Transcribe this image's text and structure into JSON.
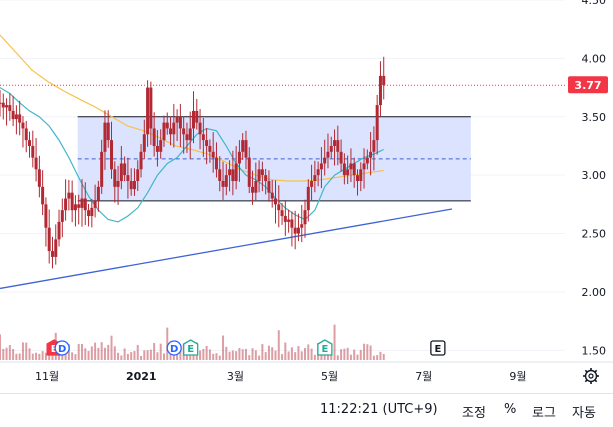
{
  "colors": {
    "candle": "#b22833",
    "zone_fill": "#dbe3ff",
    "zone_border": "#131722",
    "trendline": "#3d63d6",
    "ma_short": "#41b6c8",
    "ma_long": "#f5c24c",
    "price_label_bg": "#f23645",
    "axis_text": "#131722",
    "grid": "#f0f3fa"
  },
  "chart_data": {
    "type": "candlestick",
    "ylim": [
      1.4,
      4.5
    ],
    "y_ticks": [
      "4.50",
      "4.00",
      "3.50",
      "3.00",
      "2.50",
      "2.00",
      "1.50"
    ],
    "x_ticks": [
      {
        "label": "11월",
        "month": 1
      },
      {
        "label": "2021",
        "month": 3
      },
      {
        "label": "3월",
        "month": 5
      },
      {
        "label": "5월",
        "month": 7
      },
      {
        "label": "7월",
        "month": 9
      },
      {
        "label": "9월",
        "month": 11
      }
    ],
    "month_span": [
      0,
      12
    ],
    "last_price": "3.77",
    "last_price_value": 3.77,
    "zone": {
      "x_start": 1.65,
      "x_end": 10.0,
      "top": 3.5,
      "bottom": 2.78,
      "mid": 3.14
    },
    "trendline": {
      "x0": 0.0,
      "y0": 2.03,
      "x1": 9.6,
      "y1": 2.71
    },
    "events": [
      {
        "label": "E",
        "month": 1.15,
        "style": "earnings-red"
      },
      {
        "label": "D",
        "month": 1.32,
        "style": "dividend-blue"
      },
      {
        "label": "D",
        "month": 3.7,
        "style": "dividend-blue"
      },
      {
        "label": "E",
        "month": 4.05,
        "style": "earnings-teal"
      },
      {
        "label": "E",
        "month": 6.9,
        "style": "earnings-teal"
      },
      {
        "label": "E",
        "month": 9.3,
        "style": "earnings-gray"
      }
    ],
    "closes": [
      3.62,
      3.58,
      3.6,
      3.55,
      3.48,
      3.52,
      3.45,
      3.4,
      3.3,
      3.25,
      3.15,
      3.05,
      2.9,
      2.75,
      2.55,
      2.35,
      2.3,
      2.45,
      2.6,
      2.7,
      2.8,
      2.85,
      2.7,
      2.75,
      2.72,
      2.8,
      2.7,
      2.65,
      2.72,
      2.78,
      2.9,
      3.2,
      3.45,
      3.3,
      3.05,
      2.9,
      2.95,
      3.1,
      3.0,
      2.95,
      2.88,
      2.95,
      3.05,
      3.2,
      3.35,
      3.75,
      3.4,
      3.25,
      3.2,
      3.3,
      3.45,
      3.4,
      3.35,
      3.45,
      3.5,
      3.4,
      3.35,
      3.3,
      3.4,
      3.55,
      3.45,
      3.35,
      3.3,
      3.25,
      3.2,
      3.15,
      3.05,
      2.95,
      2.9,
      3.0,
      3.05,
      2.95,
      3.1,
      3.2,
      3.3,
      3.15,
      2.9,
      2.85,
      2.95,
      3.05,
      3.0,
      2.95,
      2.85,
      2.8,
      2.75,
      2.7,
      2.65,
      2.6,
      2.62,
      2.55,
      2.5,
      2.55,
      2.58,
      2.7,
      2.9,
      2.95,
      3.0,
      3.05,
      3.1,
      3.15,
      3.2,
      3.25,
      3.3,
      3.2,
      3.1,
      3.0,
      3.05,
      3.1,
      3.0,
      2.95,
      3.05,
      3.1,
      3.15,
      3.2,
      3.3,
      3.6,
      3.85,
      3.77
    ],
    "ma_short": [
      3.75,
      3.7,
      3.62,
      3.55,
      3.5,
      3.42,
      3.3,
      3.15,
      2.98,
      2.82,
      2.7,
      2.62,
      2.6,
      2.65,
      2.72,
      2.85,
      3.0,
      3.1,
      3.15,
      3.25,
      3.35,
      3.4,
      3.38,
      3.25,
      3.1,
      3.0,
      2.96,
      2.9,
      2.8,
      2.72,
      2.66,
      2.62,
      2.7,
      2.9,
      3.0,
      3.05,
      3.1,
      3.15,
      3.18,
      3.22
    ],
    "ma_long": [
      4.2,
      4.05,
      3.9,
      3.8,
      3.72,
      3.65,
      3.58,
      3.5,
      3.42,
      3.38,
      3.32,
      3.25,
      3.22,
      3.18,
      3.12,
      3.05,
      3.0,
      2.96,
      2.95,
      2.95,
      2.96,
      2.98,
      3.0,
      3.02,
      3.04
    ]
  },
  "footer": {
    "clock": "11:22:21 (UTC+9)",
    "adjust": "조정",
    "percent": "%",
    "log": "로그",
    "auto": "자동"
  }
}
